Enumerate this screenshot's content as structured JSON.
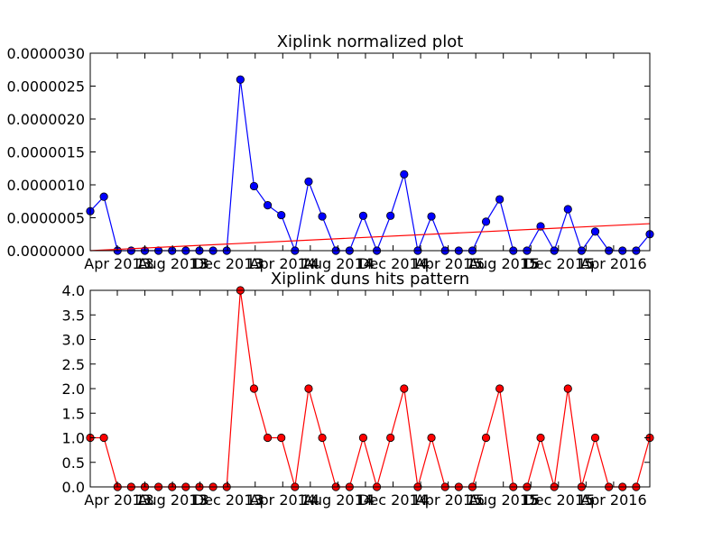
{
  "chart_data": [
    {
      "type": "line",
      "title": "Xiplink normalized plot",
      "xlabel": "",
      "ylabel": "",
      "x_tick_labels": [
        "Apr 2013",
        "13",
        "Aug 2013",
        "13",
        "Dec 2013",
        "13",
        "Apr 2014",
        "14",
        "Aug 2014",
        "14",
        "Dec 2014",
        "14",
        "Apr 2015",
        "15",
        "Aug 2015",
        "15",
        "Dec 2015",
        "15",
        "Apr 2016"
      ],
      "ylim": [
        0,
        3e-06
      ],
      "y_tick_labels": [
        "0.0000000",
        "0.0000005",
        "0.0000010",
        "0.0000015",
        "0.0000020",
        "0.0000025",
        "0.0000030"
      ],
      "grid": false,
      "series": [
        {
          "style": "line-with-markers",
          "color": "#0000ff",
          "values": [
            6e-07,
            8.2e-07,
            0,
            0,
            0,
            0,
            0,
            0,
            0,
            0,
            0,
            2.6e-06,
            9.8e-07,
            6.9e-07,
            5.4e-07,
            0,
            1.05e-06,
            5.2e-07,
            0,
            0,
            5.3e-07,
            0,
            5.3e-07,
            1.16e-06,
            0,
            5.2e-07,
            0,
            0,
            0,
            4.4e-07,
            7.8e-07,
            0,
            0,
            3.7e-07,
            0,
            6.3e-07,
            0,
            2.9e-07,
            0,
            0,
            0,
            2.5e-07
          ]
        },
        {
          "style": "trend-line",
          "color": "#ff0000",
          "values": [
            0,
            4.1e-07
          ]
        }
      ]
    },
    {
      "type": "line",
      "title": "Xiplink duns hits pattern",
      "xlabel": "",
      "ylabel": "",
      "x_tick_labels": [
        "Apr 2013",
        "13",
        "Aug 2013",
        "13",
        "Dec 2013",
        "13",
        "Apr 2014",
        "14",
        "Aug 2014",
        "14",
        "Dec 2014",
        "14",
        "Apr 2015",
        "15",
        "Aug 2015",
        "15",
        "Dec 2015",
        "15",
        "Apr 2016"
      ],
      "ylim": [
        0,
        4
      ],
      "y_tick_labels": [
        "0.0",
        "0.5",
        "1.0",
        "1.5",
        "2.0",
        "2.5",
        "3.0",
        "3.5",
        "4.0"
      ],
      "grid": false,
      "series": [
        {
          "style": "line-with-markers",
          "color": "#ff0000",
          "values": [
            1,
            1,
            0,
            0,
            0,
            0,
            0,
            0,
            0,
            0,
            0,
            4,
            2,
            1,
            1,
            0,
            2,
            1,
            0,
            0,
            1,
            0,
            1,
            2,
            0,
            1,
            0,
            0,
            0,
            1,
            2,
            0,
            0,
            1,
            0,
            2,
            0,
            1,
            0,
            0,
            0,
            1
          ]
        }
      ]
    }
  ]
}
